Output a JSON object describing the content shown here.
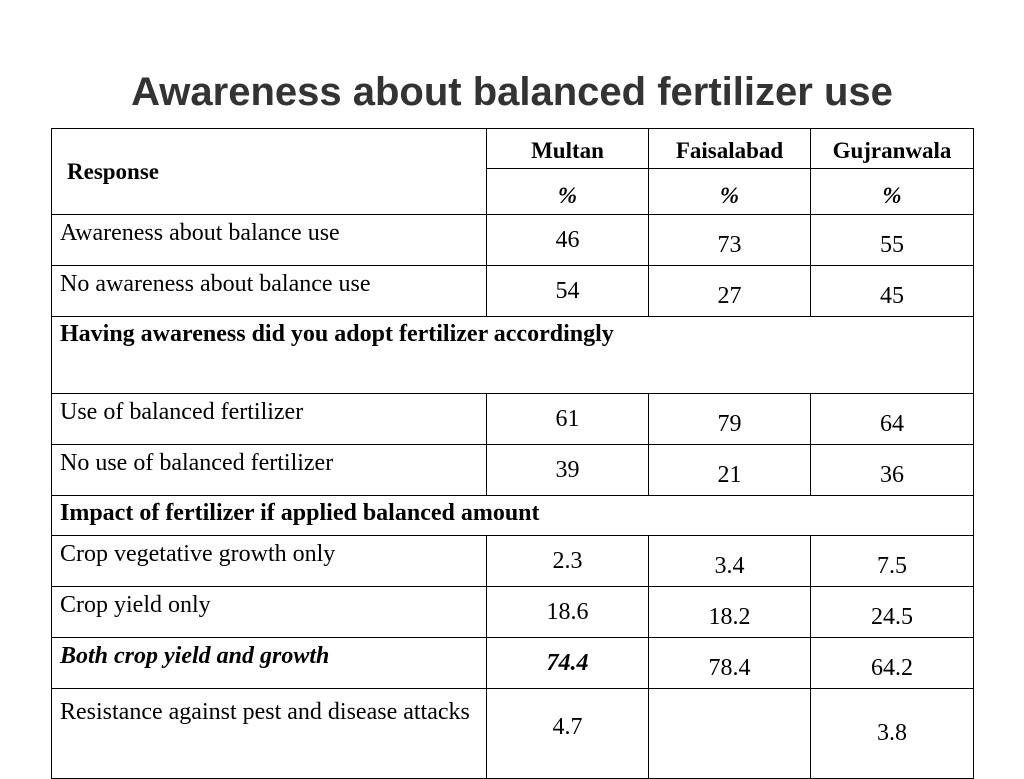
{
  "title": "Awareness about balanced fertilizer use",
  "table": {
    "header": {
      "response": "Response",
      "columns": [
        "Multan",
        "Faisalabad",
        "Gujranwala"
      ],
      "units": [
        "%",
        "%",
        "%"
      ]
    },
    "rows": [
      {
        "label": "Awareness about balance use",
        "values": [
          46,
          73,
          55
        ]
      },
      {
        "label": "No awareness about balance use",
        "values": [
          54,
          27,
          45
        ]
      },
      {
        "section": "Having awareness did you adopt fertilizer accordingly"
      },
      {
        "label": "Use of balanced fertilizer",
        "values": [
          61,
          79,
          64
        ]
      },
      {
        "label": "No use of balanced fertilizer",
        "values": [
          39,
          21,
          36
        ]
      },
      {
        "section": "Impact of fertilizer if applied balanced amount"
      },
      {
        "label": "Crop vegetative growth only",
        "values": [
          2.3,
          3.4,
          7.5
        ]
      },
      {
        "label": "Crop yield only",
        "values": [
          18.6,
          18.2,
          24.5
        ]
      },
      {
        "label": "Both crop yield and growth",
        "values": [
          74.4,
          78.4,
          64.2
        ]
      },
      {
        "label": "Resistance against pest and disease attacks",
        "values": [
          4.7,
          null,
          3.8
        ]
      }
    ]
  }
}
